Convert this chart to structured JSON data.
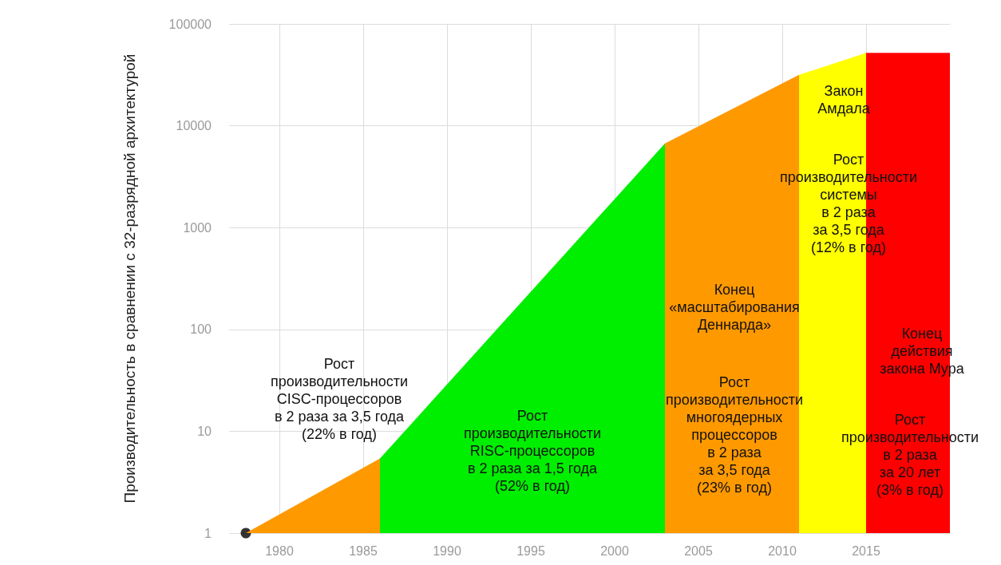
{
  "chart_data": {
    "type": "area",
    "ylabel": "Производительность в сравнении с 32-разрядной архитектурой",
    "xlim": [
      1977,
      2020
    ],
    "xticks": [
      1980,
      1985,
      1990,
      1995,
      2000,
      2005,
      2010,
      2015
    ],
    "ylim": [
      1,
      100000
    ],
    "yticks": [
      1,
      10,
      100,
      1000,
      10000,
      100000
    ],
    "log": "y",
    "grid": true,
    "series": [
      {
        "color": "#ff9900",
        "x": [
          1978,
          1986
        ],
        "values": [
          1,
          5.4
        ]
      },
      {
        "color": "#00ee00",
        "x": [
          1986,
          2003
        ],
        "values": [
          5.4,
          6700
        ]
      },
      {
        "color": "#ff9900",
        "x": [
          2003,
          2011
        ],
        "values": [
          6700,
          31600
        ]
      },
      {
        "color": "#ffff00",
        "x": [
          2011,
          2015
        ],
        "values": [
          31600,
          52000
        ]
      },
      {
        "color": "#ff0000",
        "x": [
          2015,
          2020
        ],
        "values": [
          52000,
          52000
        ]
      },
      {
        "type": "scatter",
        "color": "#000000",
        "marker": "circle",
        "x": [
          1978
        ],
        "values": [
          1
        ]
      }
    ],
    "annotations": [
      "Рост\nпроизводительности\nCISC-процессоров\nв 2 раза за 3,5 года\n(22% в год)",
      "Рост\nпроизводительности\nRISC-процессоров\nв 2 раза за 1,5 года\n(52% в год)",
      "Конец\n«масштабирования\nДеннарда»",
      "Рост\nпроизводительности\nмногоядерных\nпроцессоров\nв 2 раза\nза 3,5 года\n(23% в год)",
      "Закон\nАмдала",
      "Рост\nпроизводительности\nсистемы\nв 2 раза\nза 3,5 года\n(12% в год)",
      "Конец\nдействия\nзакона Мура",
      "Рост\nпроизводительности\nв 2 раза\nза 20 лет\n(3% в год)"
    ]
  }
}
